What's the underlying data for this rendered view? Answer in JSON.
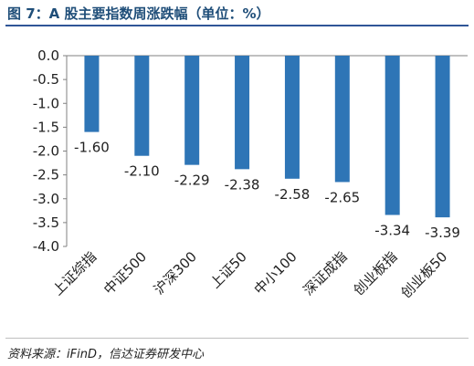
{
  "header": {
    "title": "图 7：A 股主要指数周涨跌幅（单位：%）"
  },
  "footer": {
    "source": "资料来源：iFinD，信达证券研发中心"
  },
  "colors": {
    "bar": "#2e75b6",
    "accent": "#1f4e79"
  },
  "chart_data": {
    "type": "bar",
    "title": "",
    "xlabel": "",
    "ylabel": "",
    "ylim": [
      -4.0,
      0.0
    ],
    "yticks": [
      0.0,
      -0.5,
      -1.0,
      -1.5,
      -2.0,
      -2.5,
      -3.0,
      -3.5,
      -4.0
    ],
    "ytick_labels": [
      "0.0",
      "-0.5",
      "-1.0",
      "-1.5",
      "-2.0",
      "-2.5",
      "-3.0",
      "-3.5",
      "-4.0"
    ],
    "categories": [
      "上证综指",
      "中证500",
      "沪深300",
      "上证50",
      "中小100",
      "深证成指",
      "创业板指",
      "创业板50"
    ],
    "values": [
      -1.6,
      -2.1,
      -2.29,
      -2.38,
      -2.58,
      -2.65,
      -3.34,
      -3.39
    ],
    "data_labels": [
      "-1.60",
      "-2.10",
      "-2.29",
      "-2.38",
      "-2.58",
      "-2.65",
      "-3.34",
      "-3.39"
    ],
    "grid": false,
    "legend": "none"
  }
}
